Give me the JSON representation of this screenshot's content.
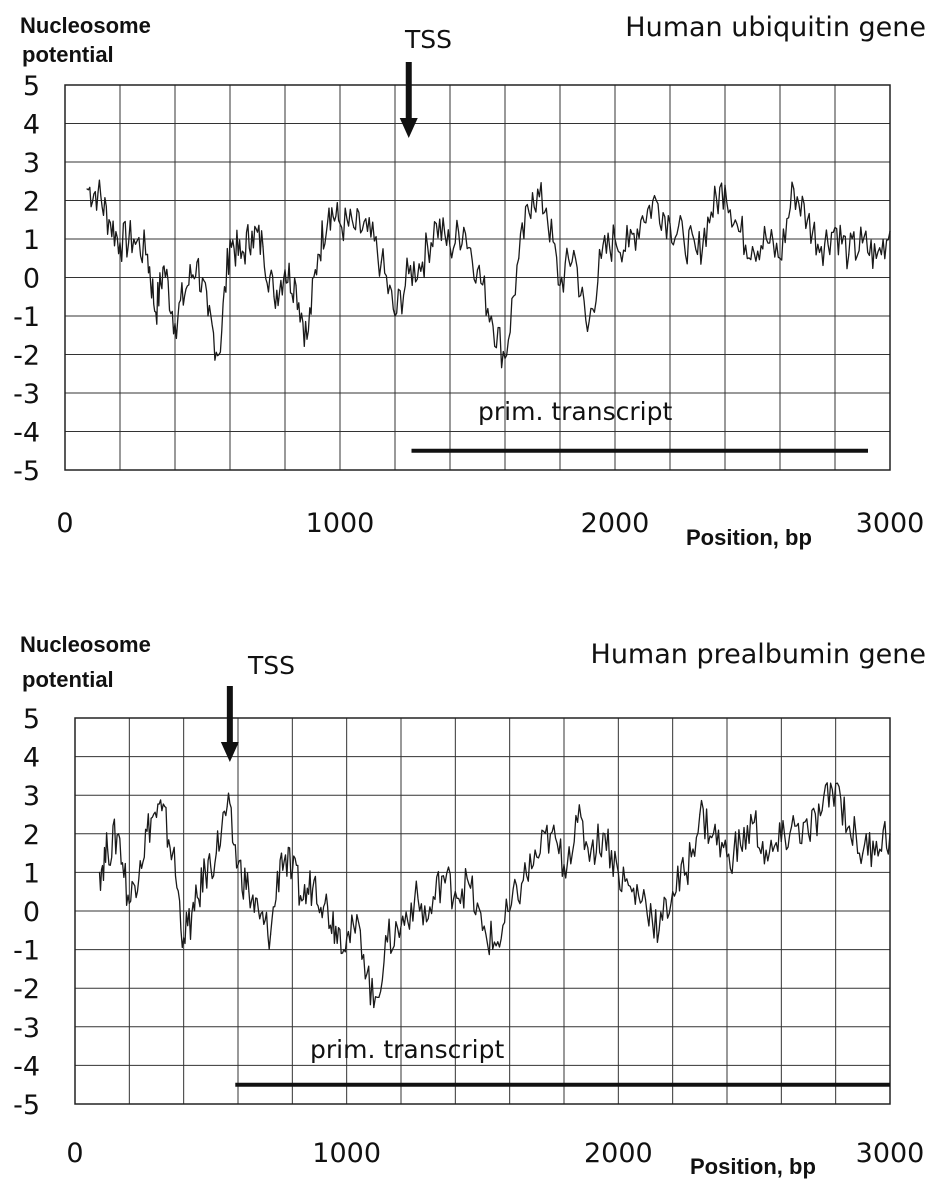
{
  "chart_data": [
    {
      "type": "line",
      "title": "Human ubiquitin gene",
      "ylabel": [
        "Nucleosome",
        "potential"
      ],
      "xlabel": "Position, bp",
      "xlim": [
        0,
        3000
      ],
      "ylim": [
        -5,
        5
      ],
      "x_ticks": [
        "0",
        "1000",
        "2000",
        "3000"
      ],
      "y_ticks": [
        "5",
        "4",
        "3",
        "2",
        "1",
        "0",
        "-1",
        "-2",
        "-3",
        "-4",
        "-5"
      ],
      "grid": true,
      "annotations": {
        "tss_label": "TSS",
        "tss_position": 1250,
        "transcript_label": "prim. transcript",
        "transcript_start": 1260,
        "transcript_end": 2920,
        "transcript_level": -4.5
      },
      "series": [
        {
          "x": [
            80,
            120,
            160,
            200,
            250,
            300,
            330,
            360,
            400,
            440,
            480,
            520,
            560,
            600,
            640,
            680,
            720,
            760,
            800,
            840,
            880,
            920,
            960,
            1000,
            1050,
            1100,
            1150,
            1200,
            1250,
            1300,
            1350,
            1400,
            1450,
            1500,
            1550,
            1600,
            1650,
            1700,
            1750,
            1800,
            1850,
            1900,
            1950,
            2000,
            2050,
            2100,
            2150,
            2200,
            2250,
            2300,
            2350,
            2400,
            2450,
            2500,
            2550,
            2600,
            2650,
            2700,
            2750,
            2800,
            2850,
            2900,
            2950,
            3000
          ],
          "y": [
            2.3,
            2.2,
            1.5,
            0.9,
            1.0,
            0.6,
            -0.9,
            0.3,
            -1.2,
            -0.3,
            0.4,
            -1.0,
            -2.0,
            1.0,
            0.5,
            1.2,
            0.8,
            -0.5,
            0.2,
            -0.2,
            -1.6,
            0.6,
            1.8,
            1.4,
            1.3,
            1.2,
            0.4,
            -1.0,
            0.1,
            0.4,
            1.4,
            0.8,
            1.3,
            0.2,
            -1.0,
            -2.1,
            0.5,
            2.2,
            1.8,
            -0.2,
            0.7,
            -1.4,
            0.5,
            1.0,
            0.8,
            1.6,
            2.0,
            1.4,
            1.0,
            0.6,
            1.7,
            2.4,
            1.2,
            0.8,
            1.0,
            0.5,
            2.3,
            1.5,
            0.8,
            1.3,
            0.6,
            0.9,
            0.5,
            1.2
          ]
        }
      ]
    },
    {
      "type": "line",
      "title": "Human prealbumin gene",
      "ylabel": [
        "Nucleosome",
        "potential"
      ],
      "xlabel": "Position, bp",
      "xlim": [
        0,
        3000
      ],
      "ylim": [
        -5,
        5
      ],
      "x_ticks": [
        "0",
        "1000",
        "2000",
        "3000"
      ],
      "y_ticks": [
        "5",
        "4",
        "3",
        "2",
        "1",
        "0",
        "-1",
        "-2",
        "-3",
        "-4",
        "-5"
      ],
      "grid": true,
      "annotations": {
        "tss_label": "TSS",
        "tss_position": 570,
        "transcript_label": "prim. transcript",
        "transcript_start": 590,
        "transcript_end": 3000,
        "transcript_level": -4.5
      },
      "series": [
        {
          "x": [
            90,
            120,
            160,
            200,
            240,
            280,
            320,
            360,
            400,
            440,
            480,
            520,
            560,
            600,
            640,
            680,
            720,
            760,
            800,
            840,
            880,
            920,
            960,
            1000,
            1050,
            1100,
            1150,
            1200,
            1250,
            1300,
            1350,
            1400,
            1450,
            1500,
            1550,
            1600,
            1650,
            1700,
            1750,
            1800,
            1850,
            1900,
            1950,
            2000,
            2050,
            2100,
            2150,
            2200,
            2250,
            2300,
            2350,
            2400,
            2450,
            2500,
            2550,
            2600,
            2650,
            2700,
            2750,
            2800,
            2850,
            2900,
            2950,
            3000
          ],
          "y": [
            1.0,
            1.6,
            2.0,
            0.2,
            1.3,
            2.4,
            2.6,
            1.5,
            -0.7,
            0.0,
            1.0,
            1.5,
            2.7,
            1.2,
            0.5,
            -0.2,
            -0.6,
            1.5,
            1.0,
            0.3,
            0.8,
            0.2,
            -0.4,
            -0.7,
            -0.5,
            -2.5,
            -0.8,
            -0.4,
            0.3,
            -0.2,
            0.9,
            0.5,
            0.7,
            -0.5,
            -0.9,
            0.0,
            0.8,
            1.4,
            2.0,
            1.2,
            2.3,
            1.6,
            2.0,
            1.0,
            0.5,
            0.3,
            -0.5,
            0.5,
            1.0,
            2.5,
            2.0,
            1.4,
            1.7,
            2.3,
            1.3,
            1.8,
            2.2,
            2.0,
            2.6,
            3.3,
            2.2,
            1.5,
            1.8,
            2.0
          ]
        }
      ]
    }
  ]
}
